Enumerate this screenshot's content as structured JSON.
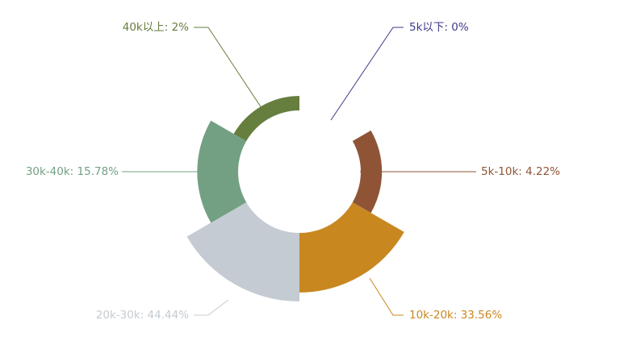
{
  "chart_data": {
    "type": "pie",
    "variant": "nightingale-rose",
    "series": [
      {
        "name": "5k以下",
        "value": 0,
        "percent_label": "0%",
        "color": "#3c3b8a"
      },
      {
        "name": "5k-10k",
        "value": 4.22,
        "percent_label": "4.22%",
        "color": "#8f5436"
      },
      {
        "name": "10k-20k",
        "value": 33.56,
        "percent_label": "33.56%",
        "color": "#c98720"
      },
      {
        "name": "20k-30k",
        "value": 44.44,
        "percent_label": "44.44%",
        "color": "#c4cbd3"
      },
      {
        "name": "30k-40k",
        "value": 15.78,
        "percent_label": "15.78%",
        "color": "#73a083"
      },
      {
        "name": "40k以上",
        "value": 2,
        "percent_label": "2%",
        "color": "#667e3e"
      }
    ],
    "labels": [
      "5k以下: 0%",
      "5k-10k: 4.22%",
      "10k-20k: 33.56%",
      "20k-30k: 44.44%",
      "30k-40k: 15.78%",
      "40k以上: 2%"
    ]
  }
}
